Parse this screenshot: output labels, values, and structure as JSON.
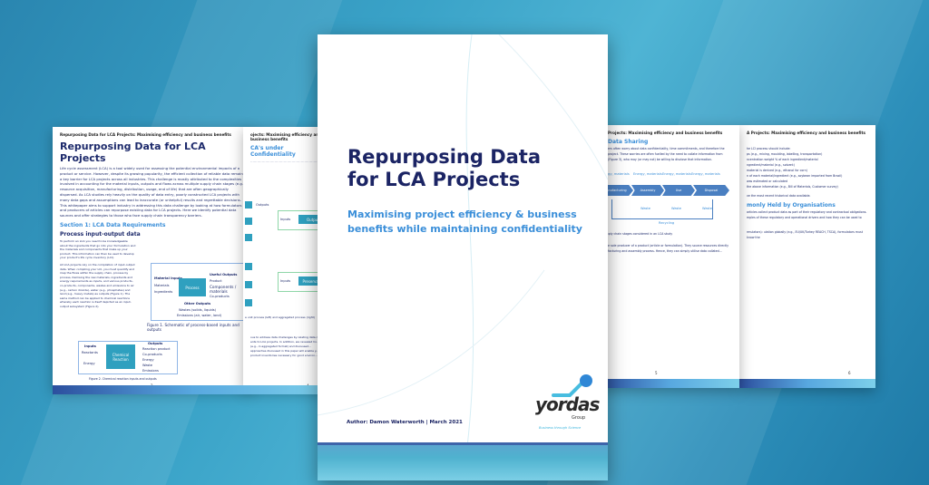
{
  "cover": {
    "title_line1": "Repurposing Data",
    "title_line2": "for LCA Projects",
    "subtitle_line1": "Maximising project efficiency & business",
    "subtitle_line2": "benefits while maintaining confidentiality",
    "author": "Author: Damon Waterworth | March 2021",
    "logo_text": "yordas",
    "logo_group": "Group",
    "tagline": "Business through Science"
  },
  "page2": {
    "header": "Repurposing Data for LCA Projects: Maximising efficiency and business benefits",
    "title": "Repurposing Data for LCA Projects",
    "intro": "Life cycle assessment (LCA) is a tool widely used for assessing the potential environmental impacts of a product or service. However, despite its growing popularity, the efficient collection of reliable data remains a key barrier for LCA projects across all industries. This challenge is mostly attributed to the complexities involved in accounting for the material inputs, outputs and flows across multiple supply chain stages (e.g., resource acquisition, manufacturing, distribution, usage, end of life) that are often geographically dispersed. As LCA studies rely heavily on the quality of data entry, poorly constructed LCA projects with many data gaps and assumptions can lead to inaccurate (or unhelpful) results and regrettable decisions. This whitepaper aims to support industry in addressing this data challenge by looking at how formulators and producers of articles can repurpose existing data for LCA projects. Here we identify potential data sources and offer strategies to those who face supply chain transparency barriers.",
    "section": "Section 1: LCA Data Requirements",
    "subsection": "Process input-output data",
    "para1": "To perform an LCA you need to be knowledgeable about the ingredients that go into your formulation and the materials and components that make up your product. This information can then be used to develop your product's life cycle inventory (LCI).",
    "para2": "All LCA projects rely on the compilation of input-output data. When compiling your LCI, you must quantify and map the flows within the supply chain, process by process, itemising the raw materials, ingredients and energy requirements as inputs, and various products, co-products, components, wastes and emissions to air (e.g., carbon dioxide), water (e.g., phosphates) and land (e.g., heavy metals) as outputs (Figure 1). The same method can be applied to chemical reactions whereby each reaction is itself depicted as an input-output subsystem (Figure 2).",
    "fig1": {
      "material_inputs": "Material Inputs",
      "materials": "Materials",
      "ingredients": "Ingredients",
      "process": "Process",
      "useful_outputs": "Useful Outputs",
      "outputs": [
        "Product",
        "Components / materials",
        "Co-products"
      ],
      "other_outputs": "Other Outputs",
      "wastes": "Wastes (solids, liquids)",
      "emissions": "Emissions (air, water, land)",
      "caption": "Figure 1. Schematic of process-based inputs and outputs"
    },
    "fig2": {
      "inputs": "Inputs",
      "reactants": "Reactants",
      "energy": "Energy",
      "process": "Chemical Reaction",
      "outputs_title": "Outputs",
      "outputs": [
        "Reaction product",
        "Co-products",
        "Energy",
        "Waste",
        "Emissions"
      ],
      "caption": "Figure 2. Chemical reaction inputs and outputs"
    },
    "page_number": "2"
  },
  "page3": {
    "header": "ojects: Maximising efficiency and business benefits",
    "section": "CA's under Confidentiality",
    "outputs_label": "Outputs",
    "inputs_label": "Inputs",
    "process_labels": [
      "Outputs",
      "Preservation"
    ],
    "caption": "e unit process (left) and aggregated process (right)",
    "text": "ous to address data challenges by relating data c... ents to LCA projects. In addition, we revealed ho... data (e.g., in aggregated format) and discussed... approaches discussed in this paper will enable y... d product inventories necessary for good environ...",
    "page_number": "4"
  },
  "page4": {
    "header": "Projects: Maximising efficiency and business benefits",
    "section": "Data Sharing",
    "text": "ers often worry about data confidentiality, time commitments, and therefore the project. These worries are often fuelled by the need to collate information from (Figure 3), who may (or may not) be willing to disclose that information.",
    "inputs": [
      "Energy, materials",
      "Energy, materials",
      "Energy, materials",
      "Energy, materials"
    ],
    "stages": [
      "Manufacturing",
      "Assembly",
      "Use",
      "Disposal"
    ],
    "waste": "Waste",
    "recycling": "Recycling",
    "caption": "supply chain stages considered in an LCA study",
    "text2": "e sole producer of a product (article or formulation). They source resources directly facturing and assembly process. Hence, they can simply utilise data collated...",
    "page_number": "5"
  },
  "page5": {
    "header": "A Projects: Maximising efficiency and business benefits",
    "list": [
      "he LCI process should include:",
      "ps (e.g., mixing, moulding, labelling, transportation)",
      "ncentration weight % of each ingredient/material",
      "ngredient/material (e.g., solvent)",
      "material is derived (e.g., ethanol for corn)",
      "n of each material/ingredient (e.g., soybean imported from Brazil)",
      "was estimated or calculated",
      "the above information (e.g., Bill of Materials, Customer survey)"
    ],
    "recent": "ve the most recent historical data available.",
    "section": "monly Held by Organisations",
    "text": "articles collect product data as part of their regulatory and contractual obligations. mples of these regulatory and operational drivers and how they can be used to",
    "text2": "rmulators): ulation globally (e.g., EU/UK/Turkey REACH, TSCA), formulators must know the",
    "page_number": "6"
  }
}
